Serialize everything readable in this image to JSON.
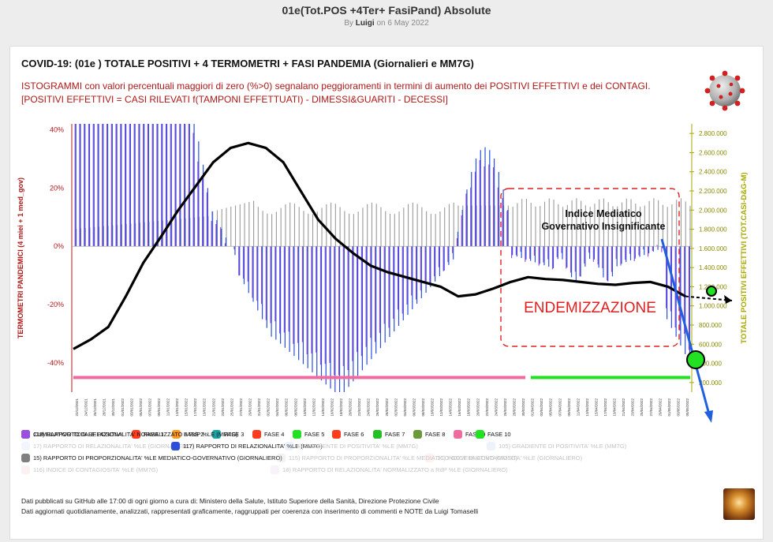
{
  "page": {
    "title": "01e(Tot.POS +4Ter+ FasiPand) Absolute",
    "byline_prefix": "By",
    "author": "Luigi",
    "byline_date": "on 6 May 2022"
  },
  "card": {
    "title": "COVID-19: (01e ) TOTALE POSITIVI + 4 TERMOMETRI + FASI PANDEMIA (Giornalieri e MM7G)",
    "desc_line1": "ISTOGRAMMI con valori percentuali maggiori di zero (%>0) segnalano peggioramenti in termini di aumento dei POSITIVI EFFETTIVI e dei CONTAGI.",
    "desc_line2": "[POSITIVI EFFETTIVI = CASI RILEVATI f(TAMPONI EFFETTUATI) - DIMESSI&GUARITI - DECESSI]"
  },
  "colors": {
    "left_axis": "#b01818",
    "right_axis": "#a8a800",
    "blue_bars": "#2b4fd8",
    "purple_bars": "#9a4fe0",
    "gray_bars": "#9a9a9a",
    "cumulative": "#000000",
    "fase9": "#f06aa0",
    "fase10": "#22e022",
    "annotation": "#e02020",
    "arrow_blue": "#2060e0"
  },
  "chart_data": {
    "type": "bar",
    "ylabel_left": "TERMOMETRI PANDEMICI (4 miei + 1 med_gov)",
    "ylabel_right": "TOTALE POSITIVI EFFETTIVI (TOT.CASI-D&G-M)",
    "left_ticks": [
      "40%",
      "20%",
      "0%",
      "-20%",
      "-40%"
    ],
    "ylim_left": [
      -50,
      42
    ],
    "right_ticks": [
      "2.800.000",
      "2.600.000",
      "2.400.000",
      "2.200.000",
      "2.000.000",
      "1.800.000",
      "1.600.000",
      "1.400.000",
      "1.200.000",
      "1.000.000",
      "800.000",
      "600.000",
      "400.000",
      "200.000"
    ],
    "ylim_right": [
      100000,
      2900000
    ],
    "x_dates": [
      "22/12/2021",
      "24/12/2021",
      "26/12/2021",
      "28/12/2021",
      "30/12/2021",
      "01/01/2022",
      "03/01/2022",
      "05/01/2022",
      "07/01/2022",
      "09/01/2022",
      "11/01/2022",
      "13/01/2022",
      "15/01/2022",
      "17/01/2022",
      "19/01/2022",
      "21/01/2022",
      "23/01/2022",
      "25/01/2022",
      "27/01/2022",
      "29/01/2022",
      "31/01/2022",
      "02/02/2022",
      "04/02/2022",
      "06/02/2022",
      "08/02/2022",
      "10/02/2022",
      "12/02/2022",
      "14/02/2022",
      "16/02/2022",
      "18/02/2022",
      "20/02/2022",
      "22/02/2022",
      "24/02/2022",
      "26/02/2022",
      "28/02/2022",
      "02/03/2022",
      "04/03/2022",
      "06/03/2022",
      "08/03/2022",
      "10/03/2022",
      "12/03/2022",
      "14/03/2022",
      "16/03/2022",
      "18/03/2022",
      "20/03/2022",
      "22/03/2022",
      "24/03/2022",
      "26/03/2022",
      "28/03/2022",
      "30/03/2022",
      "01/04/2022",
      "03/04/2022",
      "05/04/2022",
      "07/04/2022",
      "09/04/2022",
      "11/04/2022",
      "13/04/2022",
      "15/04/2022",
      "17/04/2022",
      "19/04/2022",
      "21/04/2022",
      "23/04/2022",
      "25/04/2022",
      "27/04/2022",
      "29/04/2022",
      "01/05/2022",
      "03/05/2022",
      "05/05/2022"
    ],
    "series": [
      {
        "name": "CUMULATIVO TOTALE POSITIVI",
        "axis": "right",
        "values": [
          550000,
          650000,
          780000,
          1100000,
          1450000,
          1720000,
          2000000,
          2250000,
          2500000,
          2650000,
          2700000,
          2650000,
          2500000,
          2200000,
          1900000,
          1700000,
          1550000,
          1420000,
          1350000,
          1300000,
          1250000,
          1200000,
          1100000,
          1120000,
          1180000,
          1250000,
          1300000,
          1280000,
          1270000,
          1250000,
          1230000,
          1220000,
          1240000,
          1250000,
          1200000,
          1100000
        ]
      },
      {
        "name": "117) RAPPORTO DI RELAZIONALITA' %LE (MM7G)",
        "axis": "left",
        "pattern": "blue bars, large positive in Dec-Jan, down to -50% in Feb"
      },
      {
        "name": "15) RAPPORTO DI PROPORZIONALITA' %LE MEDIATICO-GOVERNATIVO (GIORNALIERO)",
        "axis": "left",
        "pattern": "gray bars around +15% to +20%"
      },
      {
        "name": "118) RAPPORTO DI RELAZIONALITA' NORMALIZZATO a RdP %LE (MM7G)",
        "axis": "left",
        "pattern": "purple bars"
      }
    ],
    "phases": [
      {
        "name": "FASE 9",
        "from": "22/12/2021",
        "to": "26/03/2022"
      },
      {
        "name": "FASE 10",
        "from": "28/03/2022",
        "to": "05/05/2022"
      }
    ],
    "annotations": {
      "box_label": "ENDEMIZZAZIONE",
      "note_line1": "Indice Mediatico",
      "note_line2": "Governativo Insignificante"
    },
    "legend": [
      {
        "label": "CUMULATIVO TOTALE POSITIVI",
        "color": "#000000",
        "faded": false
      },
      {
        "label": "FASE 1",
        "color": "#ff3b1f",
        "faded": false
      },
      {
        "label": "FASE 2",
        "color": "#ff9a1f",
        "faded": false
      },
      {
        "label": "FASE 3",
        "color": "#1aa3a3",
        "faded": false
      },
      {
        "label": "FASE 4",
        "color": "#ff3b1f",
        "faded": false
      },
      {
        "label": "FASE 5",
        "color": "#22e022",
        "faded": false
      },
      {
        "label": "FASE 6",
        "color": "#ff3b1f",
        "faded": false
      },
      {
        "label": "FASE 7",
        "color": "#22c022",
        "faded": false
      },
      {
        "label": "FASE 8",
        "color": "#6a9a3a",
        "faded": false
      },
      {
        "label": "FASE 9",
        "color": "#f06aa0",
        "faded": false
      },
      {
        "label": "FASE 10",
        "color": "#22e022",
        "faded": false
      },
      {
        "label": "17) RAPPORTO DI RELAZIONALITA' %LE (GIORNALIERO)",
        "color": "#cfd6f5",
        "faded": true
      },
      {
        "label": "117) RAPPORTO DI RELAZIONALITA' %LE (MM7G)",
        "color": "#2b4fd8",
        "faded": false
      },
      {
        "label": "5) GRADIENTE DI POSITIVITA' %LE (MM7G)",
        "color": "#bcd0f0",
        "faded": true
      },
      {
        "label": "105) GRADIENTE DI POSITIVITA' %LE (MM7G)",
        "color": "#bcd0f0",
        "faded": true
      },
      {
        "label": "15) RAPPORTO DI PROPORZIONALITA' %LE MEDIATICO-GOVERNATIVO (GIORNALIERO)",
        "color": "#808080",
        "faded": false
      },
      {
        "label": "115) RAPPORTO DI PROPORZIONALITA' %LE MEDIATICO-GOVERNATIVO (MM7G)",
        "color": "#cccccc",
        "faded": true
      },
      {
        "label": "16) INDICE DI CONTAGIOSITA' %LE (GIORNALIERO)",
        "color": "#f5c2c2",
        "faded": true
      },
      {
        "label": "116) INDICE DI CONTAGIOSITA' %LE (MM7G)",
        "color": "#f5c2c2",
        "faded": true
      },
      {
        "label": "18) RAPPORTO DI RELAZIONALITA' NORMALIZZATO a RdP %LE (GIORNALIERO)",
        "color": "#e3cdf5",
        "faded": true
      },
      {
        "label": "118) RAPPORTO DI RELAZIONALITA' NORMALIZZATO a RdP %LE (MM7G)",
        "color": "#9a4fe0",
        "faded": false
      }
    ]
  },
  "footer": {
    "line1": "Dati pubblicati su GitHub alle 17:00 di ogni giorno a cura di: Ministero della Salute, Istituto Superiore della Sanità, Direzione Protezione Civile",
    "line2": "Dati aggiornati quotidianamente, analizzati, rappresentati graficamente, raggruppati per coerenza con inserimento di commenti e NOTE da Luigi Tomaselli"
  }
}
